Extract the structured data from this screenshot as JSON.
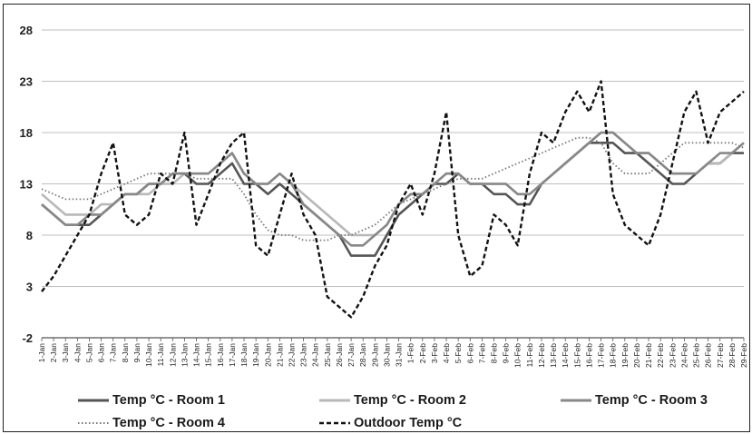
{
  "chart_data": {
    "type": "line",
    "title": "",
    "xlabel": "",
    "ylabel": "",
    "ylim": [
      -2,
      28
    ],
    "yticks": [
      -2,
      3,
      8,
      13,
      18,
      23,
      28
    ],
    "grid": "horizontal",
    "legend_position": "bottom",
    "x": [
      "1-Jan",
      "2-Jan",
      "3-Jan",
      "4-Jan",
      "5-Jan",
      "6-Jan",
      "7-Jan",
      "8-Jan",
      "9-Jan",
      "10-Jan",
      "11-Jan",
      "12-Jan",
      "13-Jan",
      "14-Jan",
      "15-Jan",
      "16-Jan",
      "17-Jan",
      "18-Jan",
      "19-Jan",
      "20-Jan",
      "21-Jan",
      "22-Jan",
      "23-Jan",
      "24-Jan",
      "25-Jan",
      "26-Jan",
      "27-Jan",
      "28-Jan",
      "29-Jan",
      "30-Jan",
      "31-Jan",
      "1-Feb",
      "2-Feb",
      "3-Feb",
      "4-Feb",
      "5-Feb",
      "6-Feb",
      "7-Feb",
      "8-Feb",
      "9-Feb",
      "10-Feb",
      "11-Feb",
      "12-Feb",
      "13-Feb",
      "14-Feb",
      "15-Feb",
      "16-Feb",
      "17-Feb",
      "18-Feb",
      "19-Feb",
      "20-Feb",
      "21-Feb",
      "22-Feb",
      "23-Feb",
      "24-Feb",
      "25-Feb",
      "26-Feb",
      "27-Feb",
      "28-Feb",
      "29-Feb"
    ],
    "series": [
      {
        "name": "Temp °C - Room 1",
        "color": "#555555",
        "dash": "solid",
        "values": [
          11,
          10,
          9,
          9,
          9,
          10,
          11,
          12,
          12,
          13,
          13,
          14,
          14,
          13,
          13,
          14,
          15,
          13,
          13,
          12,
          13,
          12,
          11,
          10,
          9,
          8,
          6,
          6,
          6,
          8,
          10,
          11,
          12,
          13,
          13,
          14,
          13,
          13,
          12,
          12,
          11,
          11,
          13,
          14,
          15,
          16,
          17,
          17,
          17,
          16,
          16,
          15,
          14,
          13,
          13,
          14,
          15,
          15,
          16,
          16
        ]
      },
      {
        "name": "Temp °C - Room 2",
        "color": "#b8b8b8",
        "dash": "solid",
        "values": [
          12,
          11,
          10,
          10,
          10,
          11,
          11,
          12,
          12,
          12,
          13,
          13,
          14,
          14,
          14,
          15,
          16,
          14,
          13,
          13,
          14,
          13,
          12,
          11,
          10,
          9,
          8,
          8,
          8,
          9,
          11,
          12,
          12,
          13,
          14,
          14,
          13,
          13,
          13,
          13,
          12,
          12,
          13,
          14,
          15,
          16,
          17,
          18,
          18,
          17,
          16,
          16,
          15,
          14,
          14,
          14,
          15,
          15,
          16,
          17
        ]
      },
      {
        "name": "Temp °C - Room 3",
        "color": "#888888",
        "dash": "solid",
        "values": [
          11,
          10,
          9,
          9,
          10,
          10,
          11,
          12,
          12,
          13,
          13,
          14,
          14,
          14,
          14,
          15,
          16,
          14,
          13,
          13,
          14,
          13,
          11,
          10,
          9,
          8,
          7,
          7,
          8,
          9,
          11,
          12,
          12,
          13,
          14,
          14,
          13,
          13,
          13,
          13,
          12,
          12,
          13,
          14,
          15,
          16,
          17,
          18,
          18,
          17,
          16,
          16,
          15,
          14,
          14,
          14,
          15,
          16,
          16,
          17
        ]
      },
      {
        "name": "Temp °C - Room 4",
        "color": "#777777",
        "dash": "dotted",
        "values": [
          12.5,
          12,
          11.5,
          11.5,
          11.5,
          12,
          12.5,
          13,
          13.5,
          14,
          14,
          14,
          14,
          13.5,
          13.5,
          13.5,
          13.5,
          12,
          10,
          8.5,
          8,
          8,
          7.5,
          7.5,
          7.5,
          8,
          8,
          8.5,
          9,
          10,
          11,
          11.5,
          12,
          12.5,
          13,
          13.5,
          13.5,
          13.5,
          14,
          14.5,
          15,
          15.5,
          16,
          16.5,
          17,
          17.5,
          17.5,
          17,
          15,
          14,
          14,
          14,
          15,
          16,
          17,
          17,
          17,
          17,
          17,
          16.5
        ]
      },
      {
        "name": "Outdoor Temp °C",
        "color": "#111111",
        "dash": "dashed",
        "values": [
          2.5,
          4,
          6,
          8,
          10,
          14,
          17,
          10,
          9,
          10,
          14,
          13,
          18,
          9,
          12,
          15,
          17,
          18,
          7,
          6,
          10,
          14,
          10,
          8,
          2,
          1,
          0,
          2,
          5,
          7,
          11,
          13,
          10,
          14,
          20,
          8,
          4,
          5,
          10,
          9,
          7,
          14,
          18,
          17,
          20,
          22,
          20,
          23,
          12,
          9,
          8,
          7,
          10,
          15,
          20,
          22,
          17,
          20,
          21,
          22
        ]
      }
    ]
  }
}
